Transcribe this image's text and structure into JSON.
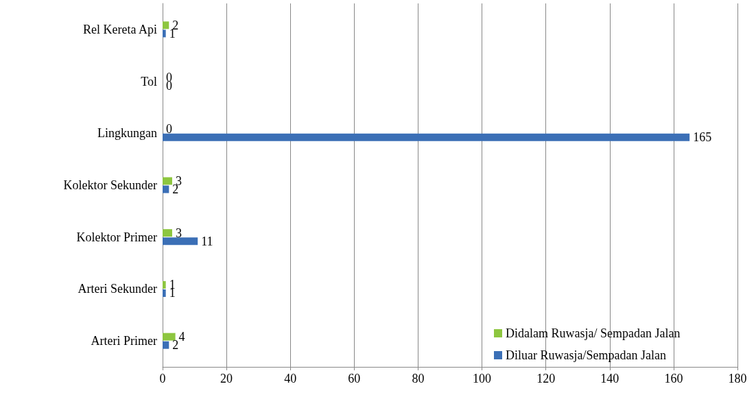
{
  "chart_data": {
    "type": "bar",
    "orientation": "horizontal",
    "categories": [
      "Rel Kereta Api",
      "Tol",
      "Lingkungan",
      "Kolektor Sekunder",
      "Kolektor Primer",
      "Arteri Sekunder",
      "Arteri Primer"
    ],
    "series": [
      {
        "name": "Didalam Ruwasja/ Sempadan Jalan",
        "color": "#8dc63f",
        "values": [
          2,
          0,
          0,
          3,
          3,
          1,
          4
        ]
      },
      {
        "name": "Diluar Ruwasja/Sempadan Jalan",
        "color": "#3b6fb6",
        "values": [
          1,
          0,
          165,
          2,
          11,
          1,
          2
        ]
      }
    ],
    "xlim": [
      0,
      180
    ],
    "xticks": [
      0,
      20,
      40,
      60,
      80,
      100,
      120,
      140,
      160,
      180
    ],
    "grid": "x",
    "legend": "bottom right",
    "data_labels": true
  }
}
